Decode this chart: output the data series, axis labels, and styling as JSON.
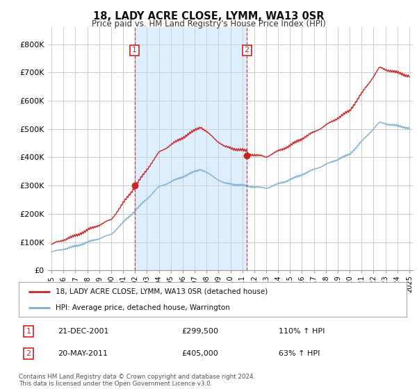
{
  "title": "18, LADY ACRE CLOSE, LYMM, WA13 0SR",
  "subtitle": "Price paid vs. HM Land Registry's House Price Index (HPI)",
  "hpi_label": "HPI: Average price, detached house, Warrington",
  "property_label": "18, LADY ACRE CLOSE, LYMM, WA13 0SR (detached house)",
  "hpi_color": "#7bafd4",
  "property_color": "#cc2222",
  "vline_color": "#cc2222",
  "shade_color": "#ddeeff",
  "transaction1": {
    "date": "21-DEC-2001",
    "price": 299500,
    "hpi_pct": "110%",
    "direction": "↑"
  },
  "transaction2": {
    "date": "20-MAY-2011",
    "price": 405000,
    "hpi_pct": "63%",
    "direction": "↑"
  },
  "vline1_x": 2001.97,
  "vline2_x": 2011.38,
  "dot1_y": 299500,
  "dot2_y": 405000,
  "yticks": [
    0,
    100000,
    200000,
    300000,
    400000,
    500000,
    600000,
    700000,
    800000
  ],
  "ylim": [
    0,
    860000
  ],
  "xlim_min": 1994.7,
  "xlim_max": 2025.3,
  "footnote": "Contains HM Land Registry data © Crown copyright and database right 2024.\nThis data is licensed under the Open Government Licence v3.0.",
  "background_color": "#ffffff",
  "grid_color": "#cccccc"
}
